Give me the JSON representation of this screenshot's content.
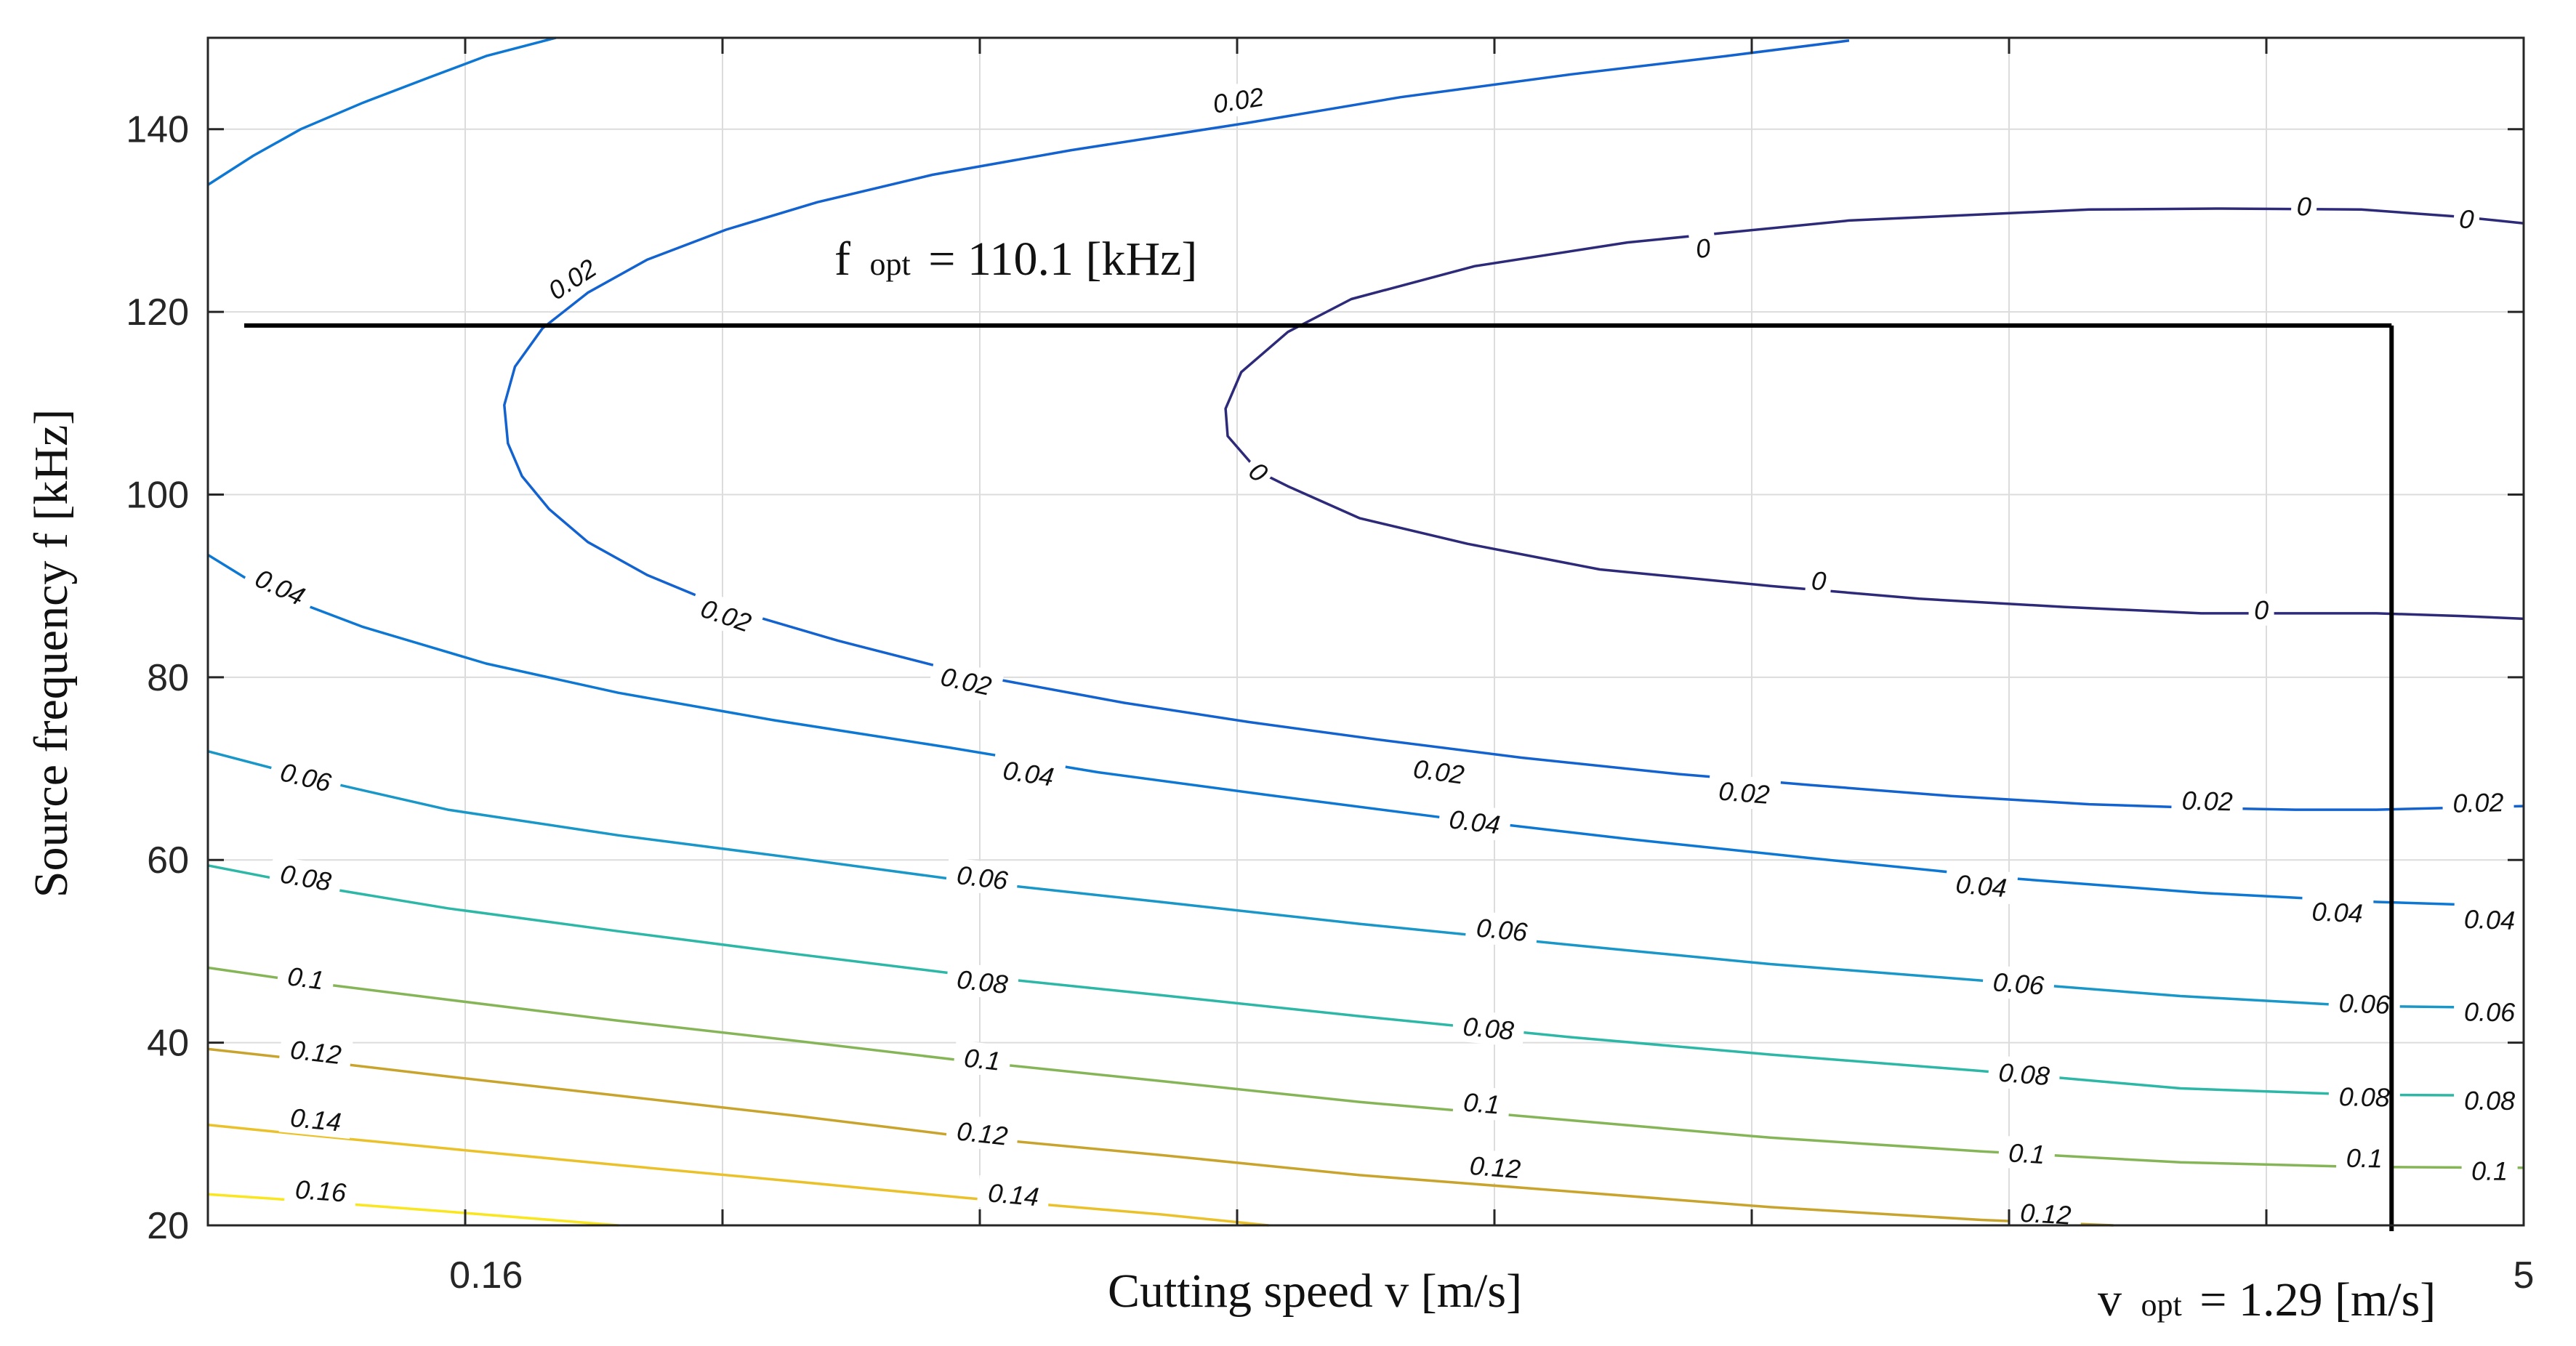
{
  "chart_data": {
    "type": "contour",
    "title": "",
    "xlabel": "Cutting speed v [m/s]",
    "ylabel": "Source frequency f [kHz]",
    "xscale": "log",
    "xlim": [
      0.1,
      5
    ],
    "ylim": [
      20,
      150
    ],
    "x_ticks": [
      0.16,
      5
    ],
    "y_ticks": [
      20,
      40,
      60,
      80,
      100,
      120,
      140
    ],
    "grid": true,
    "colormap": "parula",
    "levels": [
      0,
      0.02,
      0.04,
      0.06,
      0.08,
      0.1,
      0.12,
      0.14,
      0.16
    ],
    "contours": [
      {
        "level": 0,
        "label": "0",
        "color": "#2d2a7a",
        "closed": true,
        "points": [
          [
            5.0,
            86.4
          ],
          [
            4.5,
            86.7
          ],
          [
            3.9,
            87.0
          ],
          [
            3.4,
            87.0
          ],
          [
            2.9,
            87.0
          ],
          [
            2.3,
            87.7
          ],
          [
            1.8,
            88.6
          ],
          [
            1.4,
            90.0
          ],
          [
            1.05,
            91.8
          ],
          [
            0.84,
            94.6
          ],
          [
            0.7,
            97.4
          ],
          [
            0.62,
            100.9
          ],
          [
            0.59,
            102.5
          ],
          [
            0.56,
            106.4
          ],
          [
            0.558,
            109.4
          ],
          [
            0.573,
            113.4
          ],
          [
            0.62,
            117.8
          ],
          [
            0.69,
            121.4
          ],
          [
            0.85,
            125.0
          ],
          [
            1.1,
            127.6
          ],
          [
            1.6,
            130.0
          ],
          [
            2.4,
            131.2
          ],
          [
            3.0,
            131.3
          ],
          [
            3.8,
            131.2
          ],
          [
            4.5,
            130.4
          ],
          [
            5.0,
            129.7
          ]
        ],
        "label_positions": [
          [
            0.59,
            102.5
          ],
          [
            1.25,
            127.0
          ],
          [
            1.52,
            90.6
          ],
          [
            3.21,
            87.4
          ],
          [
            3.45,
            131.6
          ],
          [
            4.54,
            130.2
          ]
        ]
      },
      {
        "level": 0.02,
        "label": "0.02",
        "color": "#1262cf",
        "points": [
          [
            5.0,
            65.9
          ],
          [
            4.4,
            65.7
          ],
          [
            3.9,
            65.5
          ],
          [
            3.4,
            65.5
          ],
          [
            2.9,
            65.7
          ],
          [
            2.4,
            66.1
          ],
          [
            1.9,
            67.0
          ],
          [
            1.5,
            68.2
          ],
          [
            1.2,
            69.4
          ],
          [
            0.92,
            71.2
          ],
          [
            0.72,
            73.2
          ],
          [
            0.58,
            75.1
          ],
          [
            0.47,
            77.2
          ],
          [
            0.36,
            80.4
          ],
          [
            0.29,
            84.0
          ],
          [
            0.24,
            87.6
          ],
          [
            0.21,
            91.2
          ],
          [
            0.19,
            94.8
          ],
          [
            0.178,
            98.4
          ],
          [
            0.17,
            102.0
          ],
          [
            0.166,
            105.6
          ],
          [
            0.165,
            109.8
          ],
          [
            0.168,
            114.0
          ],
          [
            0.176,
            118.2
          ],
          [
            0.19,
            122.1
          ],
          [
            0.21,
            125.7
          ],
          [
            0.24,
            129.0
          ],
          [
            0.28,
            132.0
          ],
          [
            0.34,
            135.0
          ],
          [
            0.43,
            137.7
          ],
          [
            0.58,
            140.7
          ],
          [
            0.75,
            143.5
          ],
          [
            1.0,
            146.0
          ],
          [
            1.3,
            148.0
          ],
          [
            1.6,
            149.7
          ]
        ],
        "label_positions": [
          [
            0.185,
            123.6
          ],
          [
            0.24,
            86.8
          ],
          [
            0.36,
            79.6
          ],
          [
            0.57,
            143.2
          ],
          [
            0.8,
            69.7
          ],
          [
            1.34,
            67.4
          ],
          [
            2.93,
            66.5
          ],
          [
            4.63,
            66.3
          ]
        ]
      },
      {
        "level": 0.04,
        "label": "0.04",
        "color": "#0d78d3",
        "points": [
          [
            0.1,
            133.9
          ],
          [
            0.108,
            137.1
          ],
          [
            0.117,
            140.0
          ],
          [
            0.13,
            142.9
          ],
          [
            0.145,
            145.6
          ],
          [
            0.16,
            148.0
          ],
          [
            0.18,
            150.0
          ]
        ]
      },
      {
        "level": 0.04,
        "label": "0.04",
        "color": "#0d78d3",
        "points": [
          [
            0.1,
            93.4
          ],
          [
            0.11,
            89.6
          ],
          [
            0.13,
            85.5
          ],
          [
            0.16,
            81.5
          ],
          [
            0.2,
            78.3
          ],
          [
            0.26,
            75.3
          ],
          [
            0.35,
            72.3
          ],
          [
            0.45,
            69.6
          ],
          [
            0.6,
            67.1
          ],
          [
            0.8,
            64.7
          ],
          [
            1.1,
            62.3
          ],
          [
            1.5,
            60.2
          ],
          [
            2.1,
            58.0
          ],
          [
            2.9,
            56.4
          ],
          [
            3.9,
            55.4
          ],
          [
            5.0,
            54.9
          ]
        ],
        "label_positions": [
          [
            0.113,
            89.9
          ],
          [
            0.4,
            69.5
          ],
          [
            0.85,
            64.2
          ],
          [
            2.0,
            57.2
          ],
          [
            3.65,
            54.3
          ],
          [
            4.72,
            53.5
          ]
        ]
      },
      {
        "level": 0.06,
        "label": "0.06",
        "color": "#1897c8",
        "points": [
          [
            0.1,
            71.9
          ],
          [
            0.12,
            68.8
          ],
          [
            0.15,
            65.5
          ],
          [
            0.2,
            62.7
          ],
          [
            0.27,
            60.2
          ],
          [
            0.36,
            57.7
          ],
          [
            0.5,
            55.4
          ],
          [
            0.7,
            53.0
          ],
          [
            1.0,
            50.7
          ],
          [
            1.4,
            48.6
          ],
          [
            2.0,
            46.8
          ],
          [
            2.8,
            45.1
          ],
          [
            3.8,
            44.0
          ],
          [
            5.0,
            43.8
          ]
        ],
        "label_positions": [
          [
            0.118,
            69.1
          ],
          [
            0.37,
            58.1
          ],
          [
            0.89,
            52.4
          ],
          [
            2.13,
            46.5
          ],
          [
            3.82,
            44.3
          ],
          [
            4.72,
            43.4
          ]
        ]
      },
      {
        "level": 0.08,
        "label": "0.08",
        "color": "#2cb7a7",
        "points": [
          [
            0.1,
            59.4
          ],
          [
            0.12,
            57.1
          ],
          [
            0.15,
            54.7
          ],
          [
            0.2,
            52.2
          ],
          [
            0.27,
            49.7
          ],
          [
            0.36,
            47.4
          ],
          [
            0.5,
            45.2
          ],
          [
            0.7,
            42.9
          ],
          [
            1.0,
            40.6
          ],
          [
            1.4,
            38.7
          ],
          [
            2.0,
            36.9
          ],
          [
            2.8,
            35.0
          ],
          [
            3.8,
            34.3
          ],
          [
            5.0,
            34.2
          ]
        ],
        "label_positions": [
          [
            0.118,
            58.1
          ],
          [
            0.37,
            46.7
          ],
          [
            0.87,
            41.6
          ],
          [
            2.15,
            36.6
          ],
          [
            3.82,
            34.1
          ],
          [
            4.72,
            33.7
          ]
        ]
      },
      {
        "level": 0.1,
        "label": "0.1",
        "color": "#86b558",
        "points": [
          [
            0.1,
            48.2
          ],
          [
            0.12,
            46.5
          ],
          [
            0.15,
            44.7
          ],
          [
            0.2,
            42.4
          ],
          [
            0.27,
            40.2
          ],
          [
            0.36,
            38.0
          ],
          [
            0.5,
            35.8
          ],
          [
            0.7,
            33.5
          ],
          [
            1.0,
            31.5
          ],
          [
            1.4,
            29.6
          ],
          [
            2.0,
            28.1
          ],
          [
            2.8,
            26.9
          ],
          [
            3.8,
            26.4
          ],
          [
            5.0,
            26.3
          ]
        ],
        "label_positions": [
          [
            0.118,
            47.1
          ],
          [
            0.37,
            38.2
          ],
          [
            0.86,
            33.4
          ],
          [
            2.16,
            27.9
          ],
          [
            3.82,
            27.4
          ],
          [
            4.72,
            26.0
          ]
        ]
      },
      {
        "level": 0.12,
        "label": "0.12",
        "color": "#c8a42d",
        "points": [
          [
            0.1,
            39.3
          ],
          [
            0.12,
            38.0
          ],
          [
            0.15,
            36.3
          ],
          [
            0.2,
            34.2
          ],
          [
            0.27,
            32.0
          ],
          [
            0.36,
            29.7
          ],
          [
            0.5,
            27.7
          ],
          [
            0.7,
            25.5
          ],
          [
            1.0,
            23.7
          ],
          [
            1.4,
            22.0
          ],
          [
            2.0,
            20.6
          ],
          [
            2.5,
            20.0
          ]
        ],
        "label_positions": [
          [
            0.12,
            39.0
          ],
          [
            0.37,
            30.1
          ],
          [
            0.88,
            26.4
          ],
          [
            2.23,
            21.3
          ]
        ]
      },
      {
        "level": 0.14,
        "label": "0.14",
        "color": "#eac129",
        "points": [
          [
            0.1,
            31.0
          ],
          [
            0.12,
            29.8
          ],
          [
            0.15,
            28.4
          ],
          [
            0.2,
            26.6
          ],
          [
            0.27,
            24.8
          ],
          [
            0.36,
            23.0
          ],
          [
            0.5,
            21.2
          ],
          [
            0.6,
            20.0
          ]
        ],
        "label_positions": [
          [
            0.12,
            31.6
          ],
          [
            0.39,
            23.4
          ]
        ]
      },
      {
        "level": 0.16,
        "label": "0.16",
        "color": "#f9e61f",
        "points": [
          [
            0.1,
            23.4
          ],
          [
            0.12,
            22.6
          ],
          [
            0.15,
            21.5
          ],
          [
            0.2,
            20.0
          ]
        ],
        "label_positions": [
          [
            0.121,
            23.8
          ]
        ]
      }
    ],
    "annotations": [
      {
        "main": "f",
        "sub": "opt",
        "rest": "= 110.1 [kHz]",
        "f_value": 110.1
      },
      {
        "main": "v",
        "sub": "opt",
        "rest": "= 1.29 [m/s]",
        "v_value": 1.29
      }
    ],
    "optimum_line": {
      "v_value": 4.0,
      "f_value": 118.5,
      "color": "#000000"
    }
  }
}
